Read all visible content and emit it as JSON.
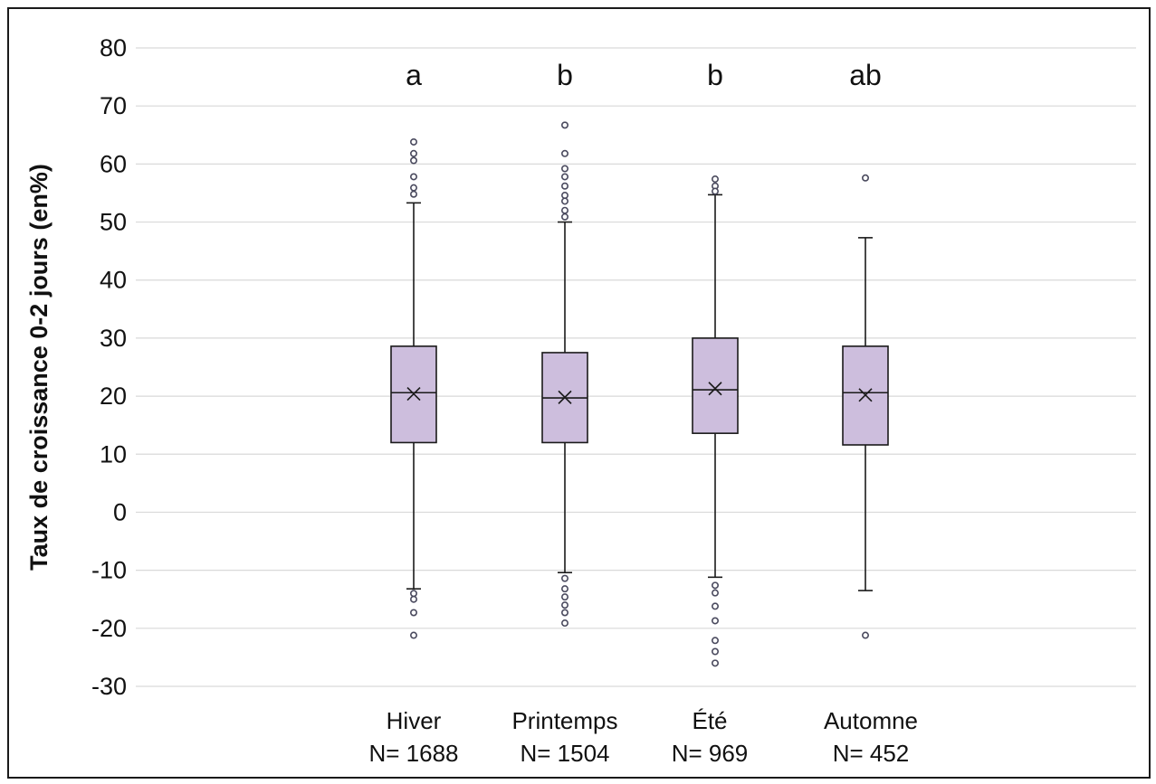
{
  "chart_data": {
    "type": "box",
    "title": "",
    "xlabel": "",
    "ylabel": "Taux de croissance 0-2 jours (en%)",
    "ylim": [
      -30,
      80
    ],
    "yticks": [
      80,
      70,
      60,
      50,
      40,
      30,
      20,
      10,
      0,
      -10,
      -20,
      -30
    ],
    "grid": true,
    "colors": {
      "box_fill": "#CDBEDD",
      "stroke": "#1a1a1a",
      "grid": "#d9d9d9"
    },
    "categories": [
      {
        "label": "Hiver",
        "n": "N= 1688",
        "sig": "a",
        "min": -13.2,
        "q1": 12.0,
        "median": 20.6,
        "q3": 28.6,
        "max": 53.3,
        "mean": 20.4,
        "outliers": [
          63.8,
          61.8,
          60.6,
          57.8,
          55.9,
          54.8,
          -14.0,
          -15.0,
          -17.3,
          -21.2
        ]
      },
      {
        "label": "Printemps",
        "n": "N= 1504",
        "sig": "b",
        "min": -10.4,
        "q1": 12.0,
        "median": 19.7,
        "q3": 27.5,
        "max": 50.0,
        "mean": 19.8,
        "outliers": [
          66.7,
          61.8,
          59.2,
          57.8,
          56.2,
          54.6,
          53.6,
          52.0,
          50.9,
          -11.4,
          -13.2,
          -14.6,
          -16.0,
          -17.3,
          -19.1
        ]
      },
      {
        "label": "Été",
        "n": "N= 969",
        "sig": "b",
        "min": -11.2,
        "q1": 13.6,
        "median": 21.1,
        "q3": 30.0,
        "max": 54.7,
        "mean": 21.3,
        "outliers": [
          57.4,
          56.2,
          55.3,
          -12.6,
          -13.9,
          -16.2,
          -18.7,
          -22.1,
          -24.0,
          -26.0
        ]
      },
      {
        "label": "Automne",
        "n": "N= 452",
        "sig": "ab",
        "min": -13.5,
        "q1": 11.6,
        "median": 20.6,
        "q3": 28.6,
        "max": 47.3,
        "mean": 20.2,
        "outliers": [
          57.6,
          -21.2
        ]
      }
    ]
  }
}
